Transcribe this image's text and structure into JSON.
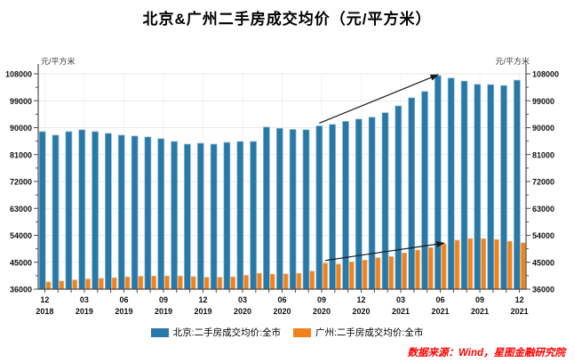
{
  "title": "北京&广州二手房成交均价（元/平方米）",
  "y_axis_unit_left": "元/平方米",
  "y_axis_unit_right": "元/平方米",
  "source_note": "数据来源：Wind，星图金融研究院",
  "colors": {
    "beijing_bar": "#2878A8",
    "beijing_bar_edge": "#8FBCD4",
    "guangzhou_bar": "#F0821E",
    "guangzhou_bar_edge": "#F6B26B",
    "source_text": "#FF0000",
    "gridline": "#EAEAEA",
    "vertical_gridline": "#F2F2F2",
    "axis": "#4D4D4D",
    "tick_label": "#111111",
    "arrow": "#1a1a1a"
  },
  "legend": [
    {
      "label": "北京:二手房成交均价:全市",
      "color": "#2878A8"
    },
    {
      "label": "广州:二手房成交均价:全市",
      "color": "#F0821E"
    }
  ],
  "chart_data": {
    "type": "bar",
    "title": "北京&广州二手房成交均价（元/平方米）",
    "ylabel": "元/平方米",
    "ylim": [
      36000,
      108000
    ],
    "y_ticks": [
      36000,
      45000,
      54000,
      63000,
      72000,
      81000,
      90000,
      99000,
      108000
    ],
    "y_minor_tick_step": 4500,
    "grid": "horizontal-light",
    "legend_position": "bottom",
    "x_tick_label_every": 3,
    "categories": [
      "2018-12",
      "2019-01",
      "2019-02",
      "2019-03",
      "2019-04",
      "2019-05",
      "2019-06",
      "2019-07",
      "2019-08",
      "2019-09",
      "2019-10",
      "2019-11",
      "2019-12",
      "2020-01",
      "2020-02",
      "2020-03",
      "2020-04",
      "2020-05",
      "2020-06",
      "2020-07",
      "2020-08",
      "2020-09",
      "2020-10",
      "2020-11",
      "2020-12",
      "2021-01",
      "2021-02",
      "2021-03",
      "2021-04",
      "2021-05",
      "2021-06",
      "2021-07",
      "2021-08",
      "2021-09",
      "2021-10",
      "2021-11",
      "2021-12"
    ],
    "series": [
      {
        "name": "北京:二手房成交均价:全市",
        "color": "#2878A8",
        "values": [
          88700,
          87500,
          88700,
          89300,
          88700,
          88100,
          87500,
          87200,
          86900,
          86300,
          85400,
          84500,
          84800,
          84500,
          85100,
          85400,
          85400,
          90200,
          89800,
          89400,
          89300,
          90600,
          91100,
          92100,
          92900,
          93500,
          95000,
          97300,
          100000,
          102100,
          107400,
          106600,
          105600,
          104500,
          104400,
          104100,
          105900
        ]
      },
      {
        "name": "广州:二手房成交均价:全市",
        "color": "#F0821E",
        "values": [
          38400,
          38700,
          39100,
          39400,
          39600,
          39800,
          40100,
          40300,
          40400,
          40400,
          40400,
          40200,
          40000,
          40000,
          40100,
          40600,
          41300,
          41000,
          41100,
          41300,
          42000,
          44700,
          44400,
          45100,
          45700,
          46500,
          46900,
          48100,
          49100,
          49900,
          51100,
          52400,
          52900,
          52900,
          52600,
          52000,
          51500
        ]
      }
    ],
    "annotations": [
      {
        "type": "arrow",
        "series": "北京:二手房成交均价:全市",
        "from_category": "2020-09",
        "to_category": "2021-06"
      },
      {
        "type": "arrow",
        "series": "广州:二手房成交均价:全市",
        "from_category": "2020-09",
        "to_category": "2021-06"
      }
    ]
  }
}
